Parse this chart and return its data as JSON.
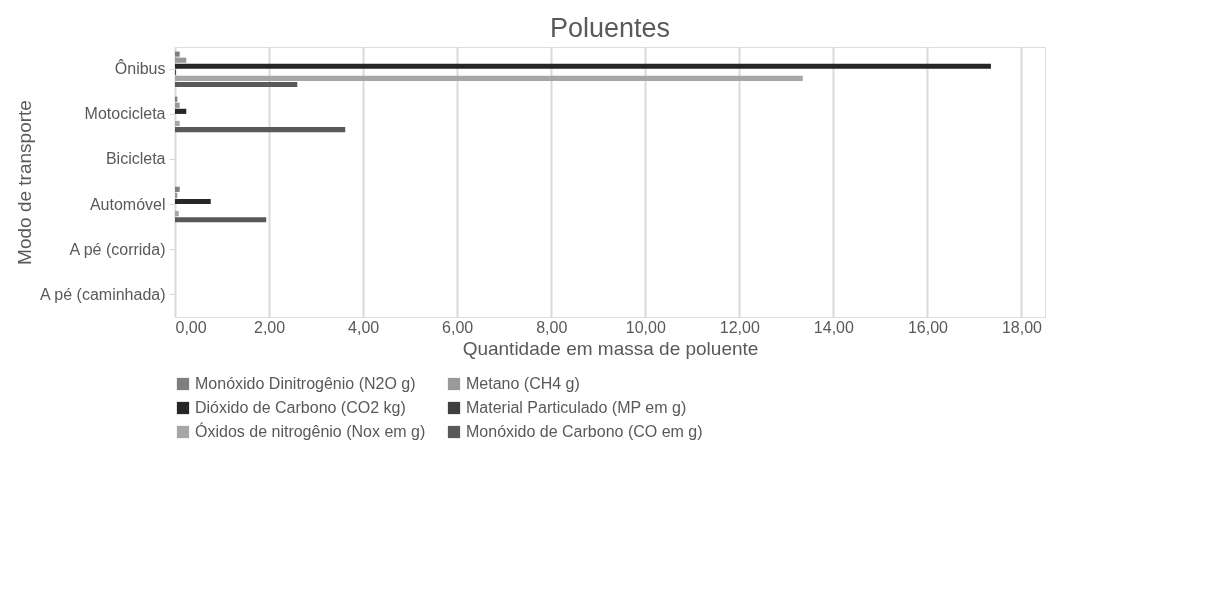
{
  "chart_data": {
    "type": "bar",
    "orientation": "horizontal",
    "title": "Poluentes",
    "xlabel": "Quantidade em massa de poluente",
    "ylabel": "Modo de transporte",
    "categories": [
      "Ônibus",
      "Motocicleta",
      "Bicicleta",
      "Automóvel",
      "A pé (corrida)",
      "A pé (caminhada)"
    ],
    "series": [
      {
        "name": "Monóxido Dinitrogênio (N2O g)",
        "color": "#7f7f7f",
        "values": [
          0.1,
          0.05,
          0,
          0.1,
          0,
          0
        ]
      },
      {
        "name": "Metano (CH4 g)",
        "color": "#999999",
        "values": [
          0.24,
          0.1,
          0,
          0.05,
          0,
          0
        ]
      },
      {
        "name": "Dióxido de Carbono (CO2 kg)",
        "color": "#262626",
        "values": [
          17.35,
          0.24,
          0,
          0.76,
          0,
          0
        ]
      },
      {
        "name": "Material Particulado (MP em g)",
        "color": "#404040",
        "values": [
          0.02,
          0,
          0,
          0,
          0,
          0
        ]
      },
      {
        "name": "Óxidos de nitrogênio (Nox em g)",
        "color": "#a6a6a6",
        "values": [
          13.35,
          0.1,
          0,
          0.08,
          0,
          0
        ]
      },
      {
        "name": "Monóxido de Carbono (CO em g)",
        "color": "#595959",
        "values": [
          2.6,
          3.62,
          0,
          1.94,
          0,
          0
        ]
      }
    ],
    "xlim": [
      0,
      18.5
    ],
    "xticks": [
      {
        "value": 0,
        "label": "0,00"
      },
      {
        "value": 2,
        "label": "2,00"
      },
      {
        "value": 4,
        "label": "4,00"
      },
      {
        "value": 6,
        "label": "6,00"
      },
      {
        "value": 8,
        "label": "8,00"
      },
      {
        "value": 10,
        "label": "10,00"
      },
      {
        "value": 12,
        "label": "12,00"
      },
      {
        "value": 14,
        "label": "14,00"
      },
      {
        "value": 16,
        "label": "16,00"
      },
      {
        "value": 18,
        "label": "18,00"
      }
    ],
    "grid": "x",
    "legend": "bottom"
  }
}
